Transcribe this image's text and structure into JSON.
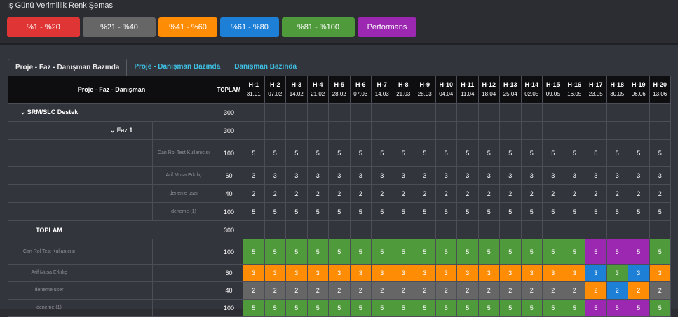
{
  "legend": {
    "title": "İş Günü Verimlilik Renk Şeması",
    "items": [
      {
        "label": "%1 - %20",
        "color": "#e03535",
        "width": 104
      },
      {
        "label": "%21 - %40",
        "color": "#666666",
        "width": 104
      },
      {
        "label": "%41 - %60",
        "color": "#ff8c05",
        "width": 84
      },
      {
        "label": "%61 - %80",
        "color": "#1e7fd6",
        "width": 84
      },
      {
        "label": "%81 - %100",
        "color": "#4f9a3b",
        "width": 104
      },
      {
        "label": "Performans Aşımı",
        "color": "#9c27b0",
        "width": 84
      }
    ]
  },
  "tabs": [
    {
      "label": "Proje - Faz - Danışman Bazında",
      "active": true
    },
    {
      "label": "Proje - Danışman Bazında",
      "active": false
    },
    {
      "label": "Danışman Bazında",
      "active": false
    }
  ],
  "table": {
    "header_main": "Proje - Faz - Danışman",
    "header_total": "TOPLAM",
    "weeks": [
      {
        "h": "H-1",
        "d": "31.01"
      },
      {
        "h": "H-2",
        "d": "07.02"
      },
      {
        "h": "H-3",
        "d": "14.02"
      },
      {
        "h": "H-4",
        "d": "21.02"
      },
      {
        "h": "H-5",
        "d": "28.02"
      },
      {
        "h": "H-6",
        "d": "07.03"
      },
      {
        "h": "H-7",
        "d": "14.03"
      },
      {
        "h": "H-8",
        "d": "21.03"
      },
      {
        "h": "H-9",
        "d": "28.03"
      },
      {
        "h": "H-10",
        "d": "04.04"
      },
      {
        "h": "H-11",
        "d": "11.04"
      },
      {
        "h": "H-12",
        "d": "18.04"
      },
      {
        "h": "H-13",
        "d": "25.04"
      },
      {
        "h": "H-14",
        "d": "02.05"
      },
      {
        "h": "H-15",
        "d": "09.05"
      },
      {
        "h": "H-16",
        "d": "16.05"
      },
      {
        "h": "H-17",
        "d": "23.05"
      },
      {
        "h": "H-18",
        "d": "30.05"
      },
      {
        "h": "H-19",
        "d": "06.06"
      },
      {
        "h": "H-20",
        "d": "13.06"
      }
    ],
    "project": {
      "label": "⌄ SRM/SLC Destek",
      "total": "300"
    },
    "phase": {
      "label": "⌄ Faz 1",
      "total": "300"
    },
    "consultants": [
      {
        "name": "Can Rol Test Kullanıcısı",
        "total": "100",
        "value": "5"
      },
      {
        "name": "Arif Musa Erkılıç",
        "total": "60",
        "value": "3"
      },
      {
        "name": "deneme user",
        "total": "40",
        "value": "2"
      },
      {
        "name": "deneme (1)",
        "total": "100",
        "value": "5"
      }
    ],
    "summary": {
      "label": "TOPLAM",
      "total": "300"
    },
    "summary_rows": [
      {
        "name": "Can Rol Test Kullanıcısı",
        "total": "100",
        "value": "5",
        "colors": [
          "green",
          "green",
          "green",
          "green",
          "green",
          "green",
          "green",
          "green",
          "green",
          "green",
          "green",
          "green",
          "green",
          "green",
          "green",
          "green",
          "purple",
          "purple",
          "purple",
          "green"
        ]
      },
      {
        "name": "Arif Musa Erkılıç",
        "total": "60",
        "value": "3",
        "colors": [
          "orange",
          "orange",
          "orange",
          "orange",
          "orange",
          "orange",
          "orange",
          "orange",
          "orange",
          "orange",
          "orange",
          "orange",
          "orange",
          "orange",
          "orange",
          "orange",
          "blue",
          "green",
          "blue",
          "orange"
        ]
      },
      {
        "name": "deneme user",
        "total": "40",
        "value": "2",
        "colors": [
          "gray",
          "gray",
          "gray",
          "gray",
          "gray",
          "gray",
          "gray",
          "gray",
          "gray",
          "gray",
          "gray",
          "gray",
          "gray",
          "gray",
          "gray",
          "gray",
          "orange",
          "blue",
          "orange",
          "gray"
        ]
      },
      {
        "name": "deneme (1)",
        "total": "100",
        "value": "5",
        "colors": [
          "green",
          "green",
          "green",
          "green",
          "green",
          "green",
          "green",
          "green",
          "green",
          "green",
          "green",
          "green",
          "green",
          "green",
          "green",
          "green",
          "purple",
          "purple",
          "purple",
          "green"
        ]
      }
    ]
  }
}
